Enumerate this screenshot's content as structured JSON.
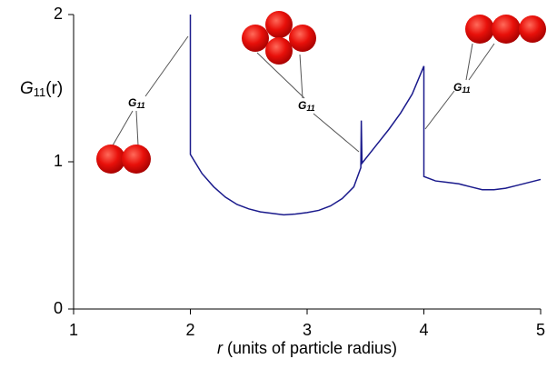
{
  "chart_data": {
    "type": "line",
    "ylabel": {
      "main": "G",
      "sub": "11",
      "rest": "(r)"
    },
    "xlabel": {
      "var": "r",
      "text": "(units of particle radius)"
    },
    "annotations": [
      {
        "main": "G",
        "sub": "11"
      },
      {
        "main": "G",
        "sub": "11"
      },
      {
        "main": "G",
        "sub": "11"
      }
    ],
    "x": [
      2,
      2,
      2.1,
      2.2,
      2.3,
      2.4,
      2.5,
      2.6,
      2.7,
      2.8,
      2.9,
      3.0,
      3.1,
      3.2,
      3.3,
      3.4,
      3.46,
      3.464,
      3.47,
      3.6,
      3.7,
      3.8,
      3.9,
      4.0,
      4.0,
      4.1,
      4.2,
      4.3,
      4.4,
      4.5,
      4.6,
      4.7,
      4.8,
      4.9,
      5.0
    ],
    "series": [
      {
        "color": "#1a1a8c",
        "values": [
          2,
          1.05,
          0.92,
          0.83,
          0.76,
          0.71,
          0.68,
          0.66,
          0.65,
          0.64,
          0.645,
          0.655,
          0.67,
          0.7,
          0.75,
          0.83,
          0.96,
          1.28,
          0.99,
          1.12,
          1.22,
          1.33,
          1.46,
          1.65,
          0.9,
          0.87,
          0.86,
          0.85,
          0.83,
          0.81,
          0.81,
          0.82,
          0.84,
          0.86,
          0.88
        ]
      }
    ],
    "xlim": [
      1,
      5
    ],
    "xticks": [
      1,
      2,
      3,
      4,
      5
    ],
    "ylim": [
      0,
      2
    ],
    "yticks": [
      0,
      1,
      2
    ]
  }
}
